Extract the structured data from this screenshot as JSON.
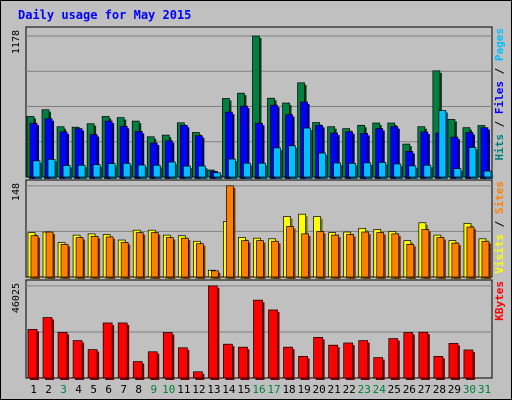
{
  "chart_data": {
    "type": "bar",
    "title": "Daily usage for May 2015",
    "categories": [
      "1",
      "2",
      "3",
      "4",
      "5",
      "6",
      "7",
      "8",
      "9",
      "10",
      "11",
      "12",
      "13",
      "14",
      "15",
      "16",
      "17",
      "18",
      "19",
      "20",
      "21",
      "22",
      "23",
      "24",
      "25",
      "26",
      "27",
      "28",
      "29",
      "30",
      "31"
    ],
    "day_label_colors": [
      "#000000",
      "#000000",
      "#008040",
      "#000000",
      "#000000",
      "#000000",
      "#000000",
      "#000000",
      "#008040",
      "#008040",
      "#000000",
      "#000000",
      "#000000",
      "#000000",
      "#000000",
      "#008040",
      "#008040",
      "#000000",
      "#000000",
      "#000000",
      "#000000",
      "#000000",
      "#008040",
      "#008040",
      "#000000",
      "#000000",
      "#000000",
      "#000000",
      "#000000",
      "#008040",
      "#008040"
    ],
    "panels": [
      {
        "id": "top",
        "axis_max_label": "1178",
        "ylim": [
          0,
          1178
        ],
        "legend": [
          {
            "text": "Hits",
            "color": "#008080"
          },
          {
            "text": " / ",
            "color": "#000000"
          },
          {
            "text": "Files",
            "color": "#0000ff"
          },
          {
            "text": " / ",
            "color": "#000000"
          },
          {
            "text": "Pages",
            "color": "#00c0ff"
          }
        ],
        "series": [
          {
            "name": "Hits",
            "color": "#008040",
            "values": [
              506,
              562,
              420,
              416,
              445,
              506,
              496,
              467,
              336,
              350,
              453,
              372,
              58,
              656,
              700,
              1178,
              658,
              618,
              787,
              455,
              420,
              404,
              432,
              451,
              451,
              275,
              420,
              887,
              481,
              412,
              430
            ]
          },
          {
            "name": "Files",
            "color": "#0000ff",
            "values": [
              449,
              487,
              377,
              404,
              355,
              467,
              424,
              381,
              284,
              303,
              432,
              345,
              47,
              542,
              592,
              449,
              600,
              521,
              626,
              431,
              367,
              378,
              364,
              405,
              421,
              214,
              376,
              367,
              333,
              372,
              412
            ]
          },
          {
            "name": "Pages",
            "color": "#00c0ff",
            "values": [
              135,
              147,
              96,
              98,
              103,
              112,
              114,
              100,
              98,
              125,
              91,
              92,
              35,
              150,
              115,
              115,
              243,
              261,
              409,
              200,
              117,
              114,
              118,
              122,
              109,
              93,
              98,
              555,
              70,
              247,
              50
            ]
          }
        ]
      },
      {
        "id": "middle",
        "axis_max_label": "148",
        "ylim": [
          0,
          148
        ],
        "legend": [
          {
            "text": "Visits",
            "color": "#ffff00"
          },
          {
            "text": " / ",
            "color": "#000000"
          },
          {
            "text": "Sites",
            "color": "#ff8000"
          }
        ],
        "series": [
          {
            "name": "Visits",
            "color": "#ffff00",
            "values": [
              72,
              73,
              56,
              68,
              70,
              69,
              60,
              76,
              76,
              68,
              67,
              58,
              11,
              90,
              64,
              63,
              62,
              98,
              102,
              98,
              72,
              73,
              79,
              77,
              74,
              59,
              88,
              68,
              59,
              87,
              62
            ]
          },
          {
            "name": "Sites",
            "color": "#ff8000",
            "values": [
              67,
              73,
              53,
              64,
              66,
              65,
              56,
              72,
              72,
              64,
              63,
              54,
              10,
              148,
              59,
              59,
              58,
              82,
              70,
              74,
              68,
              69,
              73,
              72,
              70,
              53,
              77,
              64,
              55,
              81,
              58
            ]
          }
        ]
      },
      {
        "id": "bottom",
        "axis_max_label": "46025",
        "ylim": [
          0,
          46025
        ],
        "legend": [
          {
            "text": "KBytes",
            "color": "#ff0000"
          }
        ],
        "series": [
          {
            "name": "KBytes",
            "color": "#ff0000",
            "values": [
              24300,
              30200,
              22800,
              18700,
              14200,
              27500,
              27500,
              8200,
              13100,
              22700,
              15100,
              3100,
              46025,
              16900,
              15400,
              38900,
              34000,
              15400,
              10800,
              20300,
              16400,
              17500,
              18700,
              10200,
              19700,
              22700,
              22900,
              10800,
              17300,
              14000,
              0
            ]
          }
        ]
      }
    ]
  }
}
